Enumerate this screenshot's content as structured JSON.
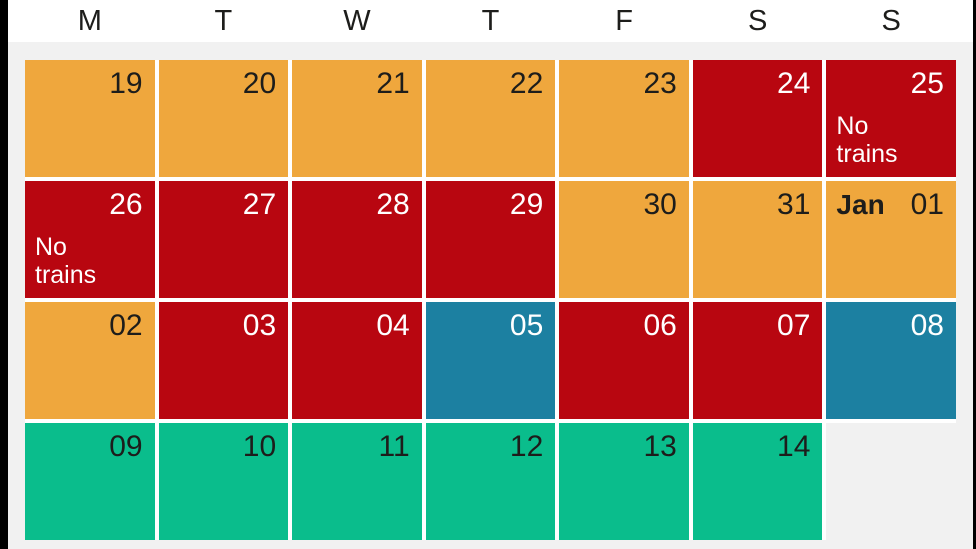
{
  "colors": {
    "orange": "#EFA73D",
    "red": "#B80610",
    "blue": "#1C80A1",
    "green": "#0ABD8C",
    "background": "#F1F1F1",
    "header_bg": "#FFFFFF",
    "dark_text": "#1D1D1B",
    "light_text": "#FFFFFF",
    "edge": "#000000"
  },
  "light_text_colors": [
    "red",
    "blue"
  ],
  "chart_data": {
    "type": "heatmap",
    "columns": [
      "M",
      "T",
      "W",
      "T",
      "F",
      "S",
      "S"
    ],
    "legend_position": "none",
    "weeks": [
      [
        {
          "day": "19",
          "color": "orange"
        },
        {
          "day": "20",
          "color": "orange"
        },
        {
          "day": "21",
          "color": "orange"
        },
        {
          "day": "22",
          "color": "orange"
        },
        {
          "day": "23",
          "color": "orange"
        },
        {
          "day": "24",
          "color": "red"
        },
        {
          "day": "25",
          "color": "red",
          "note": "No trains"
        }
      ],
      [
        {
          "day": "26",
          "color": "red",
          "note": "No trains"
        },
        {
          "day": "27",
          "color": "red"
        },
        {
          "day": "28",
          "color": "red"
        },
        {
          "day": "29",
          "color": "red"
        },
        {
          "day": "30",
          "color": "orange"
        },
        {
          "day": "31",
          "color": "orange"
        },
        {
          "day": "01",
          "color": "orange",
          "month": "Jan"
        }
      ],
      [
        {
          "day": "02",
          "color": "orange"
        },
        {
          "day": "03",
          "color": "red"
        },
        {
          "day": "04",
          "color": "red"
        },
        {
          "day": "05",
          "color": "blue"
        },
        {
          "day": "06",
          "color": "red"
        },
        {
          "day": "07",
          "color": "red"
        },
        {
          "day": "08",
          "color": "blue"
        }
      ],
      [
        {
          "day": "09",
          "color": "green"
        },
        {
          "day": "10",
          "color": "green"
        },
        {
          "day": "11",
          "color": "green"
        },
        {
          "day": "12",
          "color": "green"
        },
        {
          "day": "13",
          "color": "green"
        },
        {
          "day": "14",
          "color": "green"
        },
        {
          "empty": true
        }
      ]
    ]
  }
}
